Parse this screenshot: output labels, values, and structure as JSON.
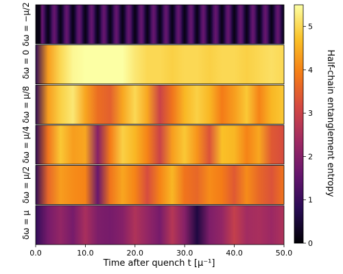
{
  "chart_data": {
    "type": "heatmap",
    "title": "",
    "xlabel": "Time after quench t [μ⁻¹]",
    "xlim": [
      0,
      50
    ],
    "x_ticks": [
      "0.0",
      "10.0",
      "20.0",
      "30.0",
      "40.0",
      "50.0"
    ],
    "colorbar": {
      "label": "Half-chain entanglement entropy",
      "range": [
        0,
        5.5
      ],
      "ticks": [
        "0",
        "1",
        "2",
        "3",
        "4",
        "5"
      ],
      "colormap": "inferno"
    },
    "sample_times": [
      0,
      2.5,
      5,
      7.5,
      10,
      12.5,
      15,
      17.5,
      20,
      22.5,
      25,
      27.5,
      30,
      32.5,
      35,
      37.5,
      40,
      42.5,
      45,
      47.5,
      50
    ],
    "rows": [
      {
        "label": "δω = −μ/2",
        "oscillation_period": 2.5,
        "entropy_min": 0.15,
        "entropy_max": 1.6,
        "entropy": [
          0.15,
          1.5,
          1.4,
          1.5,
          1.45,
          1.4,
          1.45,
          1.5,
          1.5,
          1.4,
          1.5,
          1.45,
          1.4,
          1.5,
          1.45,
          1.5,
          1.4,
          1.5,
          1.45,
          1.4,
          1.5
        ]
      },
      {
        "label": "δω = 0",
        "entropy": [
          0.9,
          4.3,
          5.0,
          5.4,
          5.5,
          5.5,
          5.5,
          5.5,
          5.2,
          5.0,
          5.0,
          4.9,
          5.0,
          5.0,
          4.9,
          5.0,
          5.0,
          4.9,
          5.0,
          5.1,
          5.0
        ]
      },
      {
        "label": "δω = μ/8",
        "entropy": [
          0.9,
          4.3,
          4.9,
          5.2,
          4.4,
          3.7,
          3.5,
          4.4,
          5.0,
          4.4,
          3.0,
          3.8,
          4.6,
          4.9,
          4.6,
          3.9,
          4.3,
          4.8,
          4.0,
          4.6,
          4.8
        ]
      },
      {
        "label": "δω = μ/4",
        "entropy": [
          0.9,
          3.8,
          4.8,
          4.3,
          4.4,
          2.0,
          3.9,
          4.9,
          4.6,
          4.0,
          3.0,
          4.3,
          4.8,
          4.2,
          3.3,
          4.7,
          4.6,
          4.0,
          4.4,
          3.4,
          3.2
        ]
      },
      {
        "label": "δω = μ/2",
        "entropy": [
          0.9,
          3.6,
          4.3,
          4.1,
          4.0,
          1.6,
          3.8,
          4.4,
          4.0,
          3.2,
          4.0,
          4.6,
          3.8,
          3.6,
          4.1,
          3.9,
          3.4,
          4.1,
          3.6,
          3.3,
          3.8
        ]
      },
      {
        "label": "δω = μ",
        "entropy": [
          0.9,
          1.8,
          2.2,
          1.8,
          2.5,
          1.9,
          1.8,
          2.0,
          2.6,
          2.2,
          1.8,
          2.7,
          2.0,
          0.6,
          1.9,
          2.2,
          2.9,
          2.4,
          2.5,
          2.3,
          2.6
        ]
      }
    ]
  }
}
